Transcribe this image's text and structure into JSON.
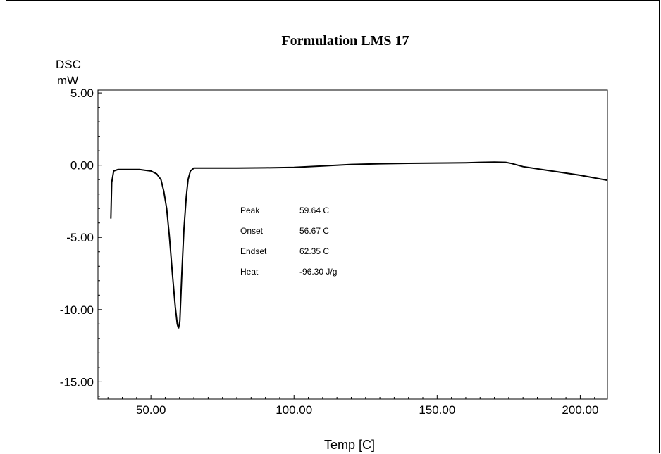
{
  "chart_data": {
    "type": "line",
    "title": "Formulation LMS 17",
    "ylabel": "DSC",
    "yunit": "mW",
    "xlabel": "Temp [C]",
    "xlim": [
      31.5,
      209.5
    ],
    "ylim": [
      -16.2,
      5.2
    ],
    "x_ticks": [
      50,
      100,
      150,
      200
    ],
    "x_tick_labels": [
      "50.00",
      "100.00",
      "150.00",
      "200.00"
    ],
    "y_ticks": [
      5,
      0,
      -5,
      -10,
      -15
    ],
    "y_tick_labels": [
      "5.00",
      "0.00",
      "-5.00",
      "-10.00",
      "-15.00"
    ],
    "grid": false,
    "legend": "none",
    "annotations": [
      {
        "label": "Peak",
        "value": "59.64 C"
      },
      {
        "label": "Onset",
        "value": "56.67 C"
      },
      {
        "label": "Endset",
        "value": "62.35 C"
      },
      {
        "label": "Heat",
        "value": "-96.30 J/g"
      }
    ],
    "series": [
      {
        "x": [
          36.0,
          36.3,
          37.0,
          38.5,
          42,
          46,
          48,
          50,
          52,
          53.5,
          54.5,
          55.5,
          56.5,
          57.5,
          58.5,
          59.2,
          59.64,
          60.1,
          60.8,
          61.5,
          62.35,
          63.0,
          63.8,
          65,
          70,
          80,
          90,
          100,
          110,
          120,
          130,
          140,
          150,
          160,
          165,
          170,
          174,
          176,
          180,
          190,
          200,
          209.5
        ],
        "y": [
          -3.7,
          -1.2,
          -0.4,
          -0.3,
          -0.3,
          -0.3,
          -0.35,
          -0.4,
          -0.6,
          -1.0,
          -1.8,
          -3.0,
          -5.0,
          -7.5,
          -9.8,
          -11.0,
          -11.3,
          -10.8,
          -7.5,
          -4.5,
          -2.2,
          -1.0,
          -0.4,
          -0.2,
          -0.2,
          -0.2,
          -0.18,
          -0.15,
          -0.05,
          0.05,
          0.1,
          0.13,
          0.15,
          0.17,
          0.2,
          0.22,
          0.2,
          0.12,
          -0.1,
          -0.4,
          -0.7,
          -1.05
        ]
      }
    ]
  }
}
